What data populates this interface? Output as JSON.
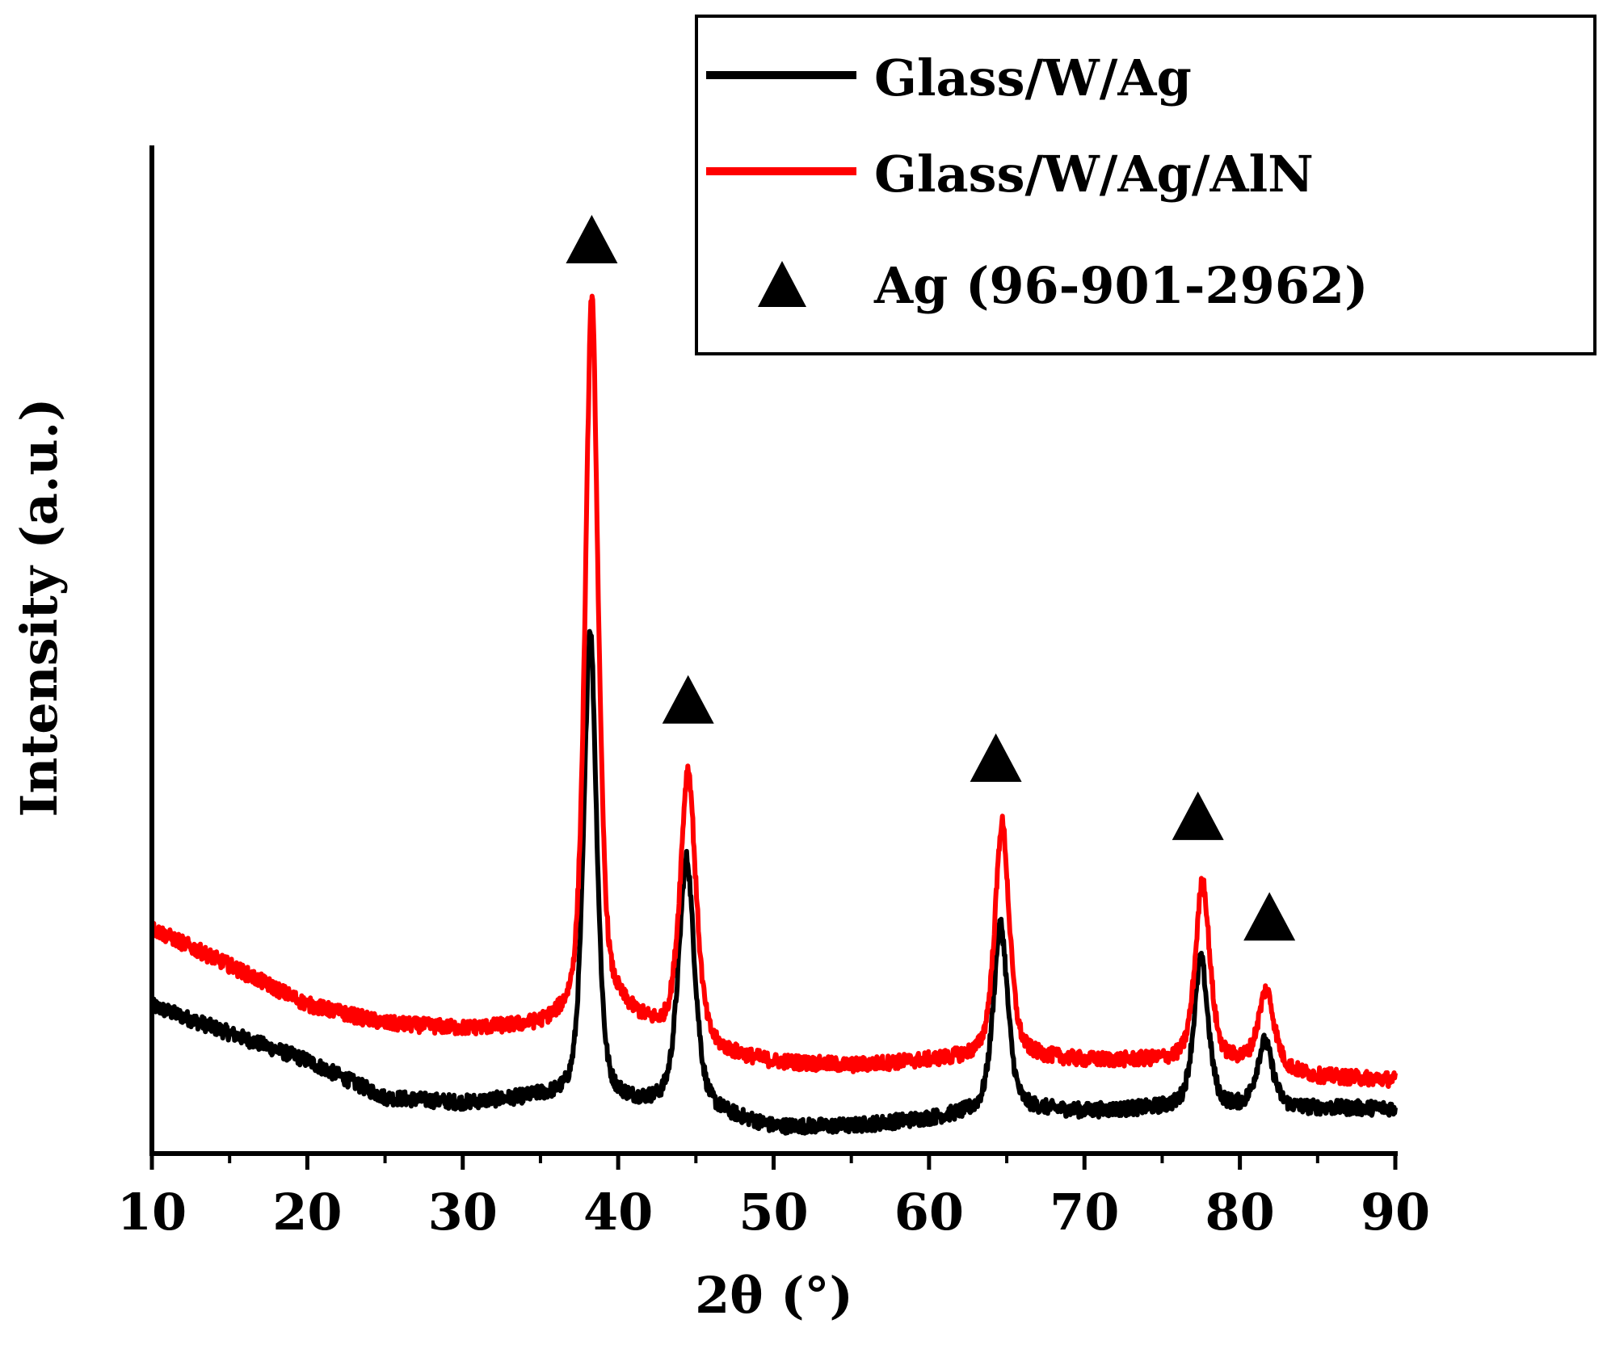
{
  "chart_data": {
    "type": "line",
    "title": "",
    "xlabel": "2θ (°)",
    "ylabel": "Intensity (a.u.)",
    "xlim": [
      10,
      90
    ],
    "ylim": [
      0,
      1000
    ],
    "xticks": [
      10,
      20,
      30,
      40,
      50,
      60,
      70,
      80,
      90
    ],
    "xtick_labels": [
      "10",
      "20",
      "30",
      "40",
      "50",
      "60",
      "70",
      "80",
      "90"
    ],
    "yticks_shown": false,
    "grid": false,
    "legend_position": "top-right",
    "series": [
      {
        "name": "Glass/W/Ag",
        "color": "#000000",
        "baseline": [
          [
            10,
            132
          ],
          [
            15,
            106
          ],
          [
            20,
            80
          ],
          [
            25,
            45
          ],
          [
            30,
            40
          ],
          [
            35,
            45
          ],
          [
            40,
            40
          ],
          [
            45,
            35
          ],
          [
            50,
            17
          ],
          [
            55,
            18
          ],
          [
            60,
            25
          ],
          [
            65,
            35
          ],
          [
            70,
            32
          ],
          [
            75,
            35
          ],
          [
            80,
            35
          ],
          [
            85,
            35
          ],
          [
            90,
            35
          ]
        ],
        "peaks": [
          {
            "x": 38.2,
            "height": 445,
            "width": 0.45
          },
          {
            "x": 44.4,
            "height": 235,
            "width": 0.55
          },
          {
            "x": 64.6,
            "height": 175,
            "width": 0.5
          },
          {
            "x": 77.5,
            "height": 140,
            "width": 0.5
          },
          {
            "x": 81.6,
            "height": 62,
            "width": 0.55
          }
        ]
      },
      {
        "name": "Glass/W/Ag/AlN",
        "color": "#ff0000",
        "baseline": [
          [
            10,
            205
          ],
          [
            15,
            170
          ],
          [
            20,
            133
          ],
          [
            25,
            115
          ],
          [
            30,
            110
          ],
          [
            35,
            112
          ],
          [
            40,
            125
          ],
          [
            45,
            90
          ],
          [
            50,
            78
          ],
          [
            55,
            75
          ],
          [
            60,
            80
          ],
          [
            65,
            85
          ],
          [
            70,
            80
          ],
          [
            75,
            80
          ],
          [
            80,
            78
          ],
          [
            85,
            65
          ],
          [
            90,
            62
          ]
        ],
        "peaks": [
          {
            "x": 38.3,
            "height": 680,
            "width": 0.45
          },
          {
            "x": 44.5,
            "height": 260,
            "width": 0.55
          },
          {
            "x": 64.7,
            "height": 220,
            "width": 0.5
          },
          {
            "x": 77.6,
            "height": 170,
            "width": 0.5
          },
          {
            "x": 81.7,
            "height": 72,
            "width": 0.55
          }
        ]
      }
    ],
    "markers": {
      "name": "Ag (96-901-2962)",
      "symbol": "triangle",
      "color": "#000000",
      "points": [
        {
          "x": 38.3,
          "y": 855
        },
        {
          "x": 44.5,
          "y": 420
        },
        {
          "x": 64.3,
          "y": 365
        },
        {
          "x": 77.3,
          "y": 310
        },
        {
          "x": 81.9,
          "y": 215
        }
      ]
    },
    "legend": [
      {
        "label": "Glass/W/Ag",
        "kind": "line",
        "color": "#000000"
      },
      {
        "label": "Glass/W/Ag/AlN",
        "kind": "line",
        "color": "#ff0000"
      },
      {
        "label": "Ag (96-901-2962)",
        "kind": "triangle",
        "color": "#000000"
      }
    ]
  }
}
